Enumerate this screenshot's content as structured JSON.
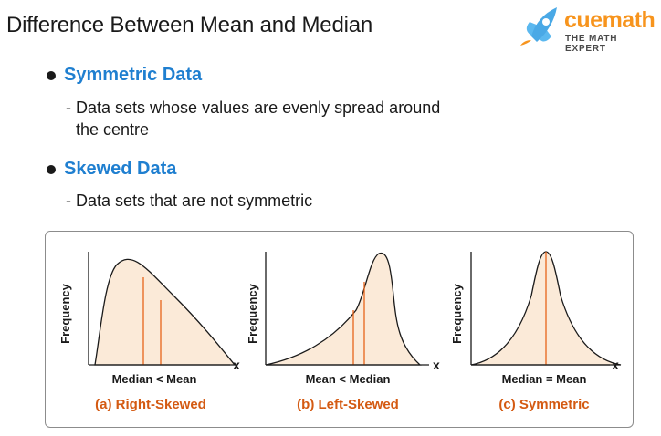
{
  "header": {
    "title": "Difference Between Mean and Median"
  },
  "logo": {
    "wordmark": "cuemath",
    "tagline": "THE MATH EXPERT",
    "icon": "rocket-icon"
  },
  "sections": [
    {
      "heading": "Symmetric Data",
      "description_line1": "- Data sets whose values are evenly spread around",
      "description_line2": "the centre"
    },
    {
      "heading": "Skewed Data",
      "description_line1": "- Data sets that are not symmetric"
    }
  ],
  "colors": {
    "heading": "#1f7fd0",
    "caption": "#d45a12",
    "fill": "#fbead8",
    "median_line": "#e8641a",
    "logo": "#f7941d"
  },
  "diagrams": [
    {
      "y_label": "Frequency",
      "x_label": "x",
      "relation": "Median < Mean",
      "caption": "(a) Right-Skewed"
    },
    {
      "y_label": "Frequency",
      "x_label": "x",
      "relation": "Mean < Median",
      "caption": "(b) Left-Skewed"
    },
    {
      "y_label": "Frequency",
      "x_label": "x",
      "relation": "Median = Mean",
      "caption": "(c) Symmetric"
    }
  ]
}
